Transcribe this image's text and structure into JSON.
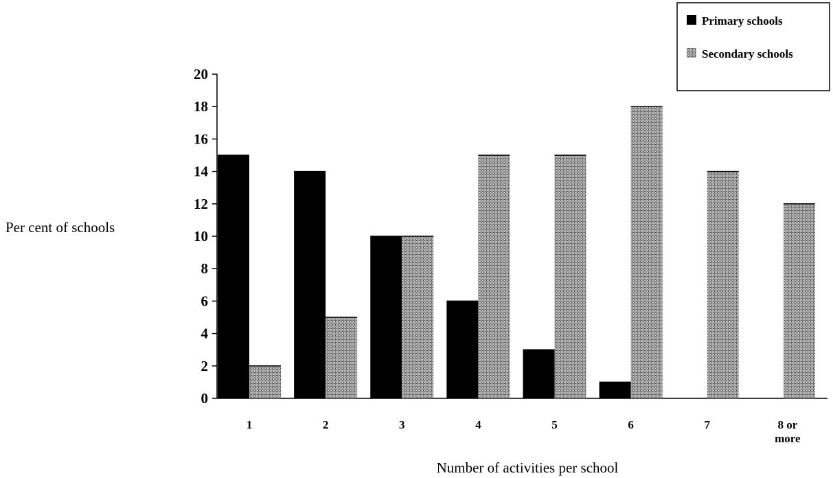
{
  "chart_data": {
    "type": "bar",
    "title": "",
    "xlabel": "Number of activities per school",
    "ylabel": "Per cent of schools",
    "categories": [
      [
        "1"
      ],
      [
        "2"
      ],
      [
        "3"
      ],
      [
        "4"
      ],
      [
        "5"
      ],
      [
        "6"
      ],
      [
        "7"
      ],
      [
        "8 or",
        "more"
      ]
    ],
    "series": [
      {
        "name": "Primary schools",
        "values": [
          15,
          14,
          10,
          6,
          3,
          1,
          0,
          0
        ],
        "color": "#000000",
        "pattern": "solid"
      },
      {
        "name": "Secondary schools",
        "values": [
          2,
          5,
          10,
          15,
          15,
          18,
          14,
          12
        ],
        "color": "#8c8c8c",
        "pattern": "dotted-grey"
      }
    ],
    "ylim": [
      0,
      20
    ],
    "yticks": [
      0,
      2,
      4,
      6,
      8,
      10,
      12,
      14,
      16,
      18,
      20
    ],
    "grid": false,
    "legend_position": "top-right"
  }
}
